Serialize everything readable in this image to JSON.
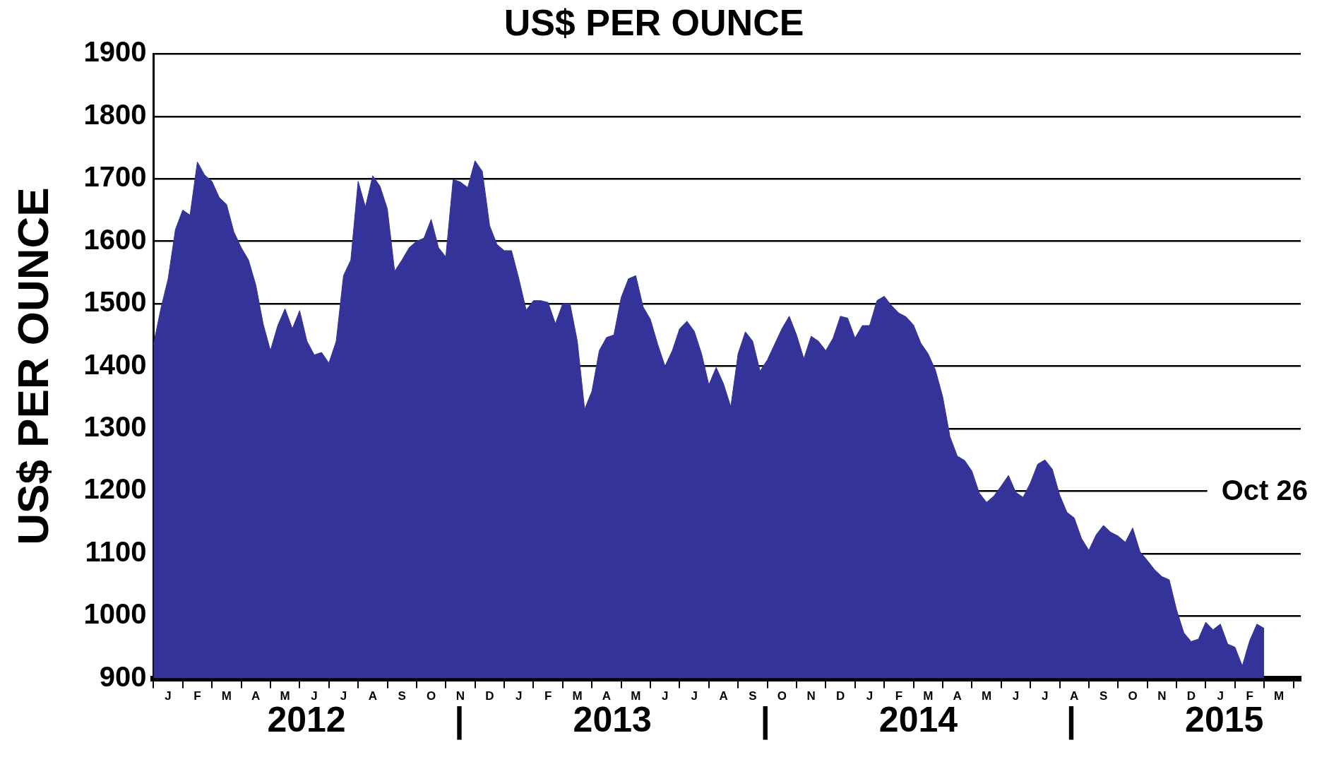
{
  "chart_data": {
    "type": "area",
    "title": "US$ PER OUNCE",
    "ylabel": "US$ PER OUNCE",
    "categories": [
      null,
      null,
      "J",
      null,
      null,
      null,
      "F",
      null,
      null,
      null,
      "M",
      null,
      null,
      null,
      "A",
      null,
      null,
      null,
      "M",
      null,
      null,
      null,
      "J",
      null,
      null,
      null,
      "J",
      null,
      null,
      null,
      "A",
      null,
      null,
      null,
      "S",
      null,
      null,
      null,
      "O",
      null,
      null,
      null,
      "N",
      null,
      null,
      null,
      "D",
      null,
      null,
      null,
      "J",
      null,
      null,
      null,
      "F",
      null,
      null,
      null,
      "M",
      null,
      null,
      null,
      "A",
      null,
      null,
      null,
      "M",
      null,
      null,
      null,
      "J",
      null,
      null,
      null,
      "J",
      null,
      null,
      null,
      "A",
      null,
      null,
      null,
      "S",
      null,
      null,
      null,
      "O",
      null,
      null,
      null,
      "N",
      null,
      null,
      null,
      "D",
      null,
      null,
      null,
      "J",
      null,
      null,
      null,
      "F",
      null,
      null,
      null,
      "M",
      null,
      null,
      null,
      "A",
      null,
      null,
      null,
      "M",
      null,
      null,
      null,
      "J",
      null,
      null,
      null,
      "J",
      null,
      null,
      null,
      "A",
      null,
      null,
      null,
      "S",
      null,
      null,
      null,
      "O",
      null,
      null,
      null,
      "N",
      null,
      null,
      null,
      "D",
      null,
      null,
      null,
      "J",
      null,
      null,
      null,
      "F",
      null,
      null,
      null,
      "M",
      null,
      null,
      null
    ],
    "series": [
      {
        "color": "#333399",
        "values": [
          1435,
          1492,
          1540,
          1619,
          1650,
          1642,
          1727,
          1706,
          1696,
          1670,
          1659,
          1615,
          1590,
          1570,
          1530,
          1468,
          1425,
          1465,
          1492,
          1460,
          1489,
          1440,
          1418,
          1422,
          1405,
          1440,
          1545,
          1570,
          1696,
          1655,
          1705,
          1688,
          1652,
          1552,
          1570,
          1590,
          1600,
          1605,
          1635,
          1590,
          1575,
          1699,
          1695,
          1686,
          1729,
          1712,
          1625,
          1595,
          1585,
          1585,
          1540,
          1490,
          1505,
          1505,
          1502,
          1468,
          1500,
          1500,
          1440,
          1331,
          1360,
          1425,
          1446,
          1450,
          1510,
          1540,
          1545,
          1495,
          1475,
          1435,
          1400,
          1425,
          1460,
          1472,
          1456,
          1420,
          1370,
          1398,
          1372,
          1335,
          1420,
          1455,
          1440,
          1392,
          1410,
          1435,
          1460,
          1480,
          1450,
          1412,
          1448,
          1440,
          1425,
          1445,
          1480,
          1477,
          1445,
          1465,
          1465,
          1505,
          1512,
          1497,
          1485,
          1479,
          1466,
          1437,
          1420,
          1394,
          1351,
          1287,
          1256,
          1249,
          1232,
          1197,
          1182,
          1192,
          1208,
          1225,
          1198,
          1190,
          1213,
          1243,
          1250,
          1235,
          1194,
          1166,
          1157,
          1124,
          1105,
          1130,
          1145,
          1134,
          1128,
          1118,
          1141,
          1103,
          1089,
          1074,
          1063,
          1058,
          1010,
          973,
          959,
          963,
          990,
          978,
          987,
          955,
          950,
          920,
          960,
          987,
          980,
          null,
          null,
          null,
          null,
          null
        ]
      }
    ],
    "ylim": [
      900,
      1900
    ],
    "yticks": [
      900,
      1000,
      1100,
      1200,
      1300,
      1400,
      1500,
      1600,
      1700,
      1800,
      1900
    ],
    "grid": "y",
    "legend": false,
    "annotations": [
      "Oct 26",
      "2012",
      "|",
      "2013",
      "|",
      "2014",
      "|",
      "2015"
    ]
  }
}
